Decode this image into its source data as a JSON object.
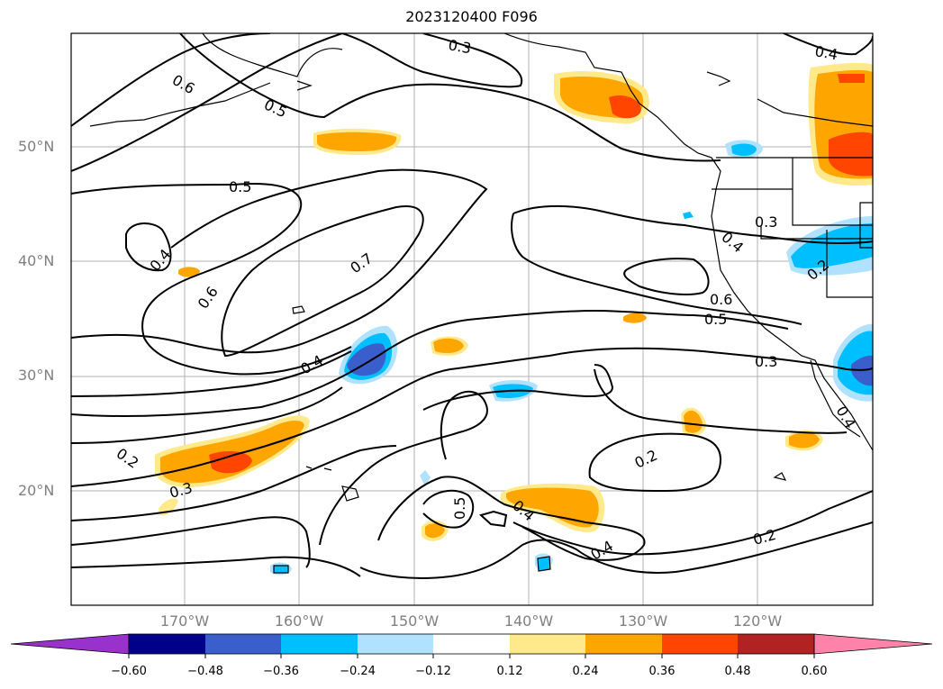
{
  "title": "2023120400 F096",
  "lat_labels": [
    "50°N",
    "40°N",
    "30°N",
    "20°N"
  ],
  "lon_labels": [
    "170°W",
    "160°W",
    "150°W",
    "140°W",
    "130°W",
    "120°W"
  ],
  "contour_labels": [
    "0.6",
    "0.5",
    "0.3",
    "0.4",
    "0.5",
    "0.7",
    "0.6",
    "0.4",
    "0.4",
    "0.3",
    "0.4",
    "0.6",
    "0.5",
    "0.3",
    "0.2",
    "0.2",
    "0.3",
    "0.5",
    "0.4",
    "0.4",
    "0.2",
    "0.2",
    "0.4"
  ],
  "colorbar": {
    "ticks": [
      "−0.60",
      "−0.48",
      "−0.36",
      "−0.24",
      "−0.12",
      "0.12",
      "0.24",
      "0.36",
      "0.48",
      "0.60"
    ],
    "colors": [
      "#9932CC",
      "#00008B",
      "#3A5FCD",
      "#00BFFF",
      "#B0E2FF",
      "#FFFFFF",
      "#FFE98A",
      "#FFA500",
      "#FF4500",
      "#B22222",
      "#FF82AB"
    ]
  }
}
